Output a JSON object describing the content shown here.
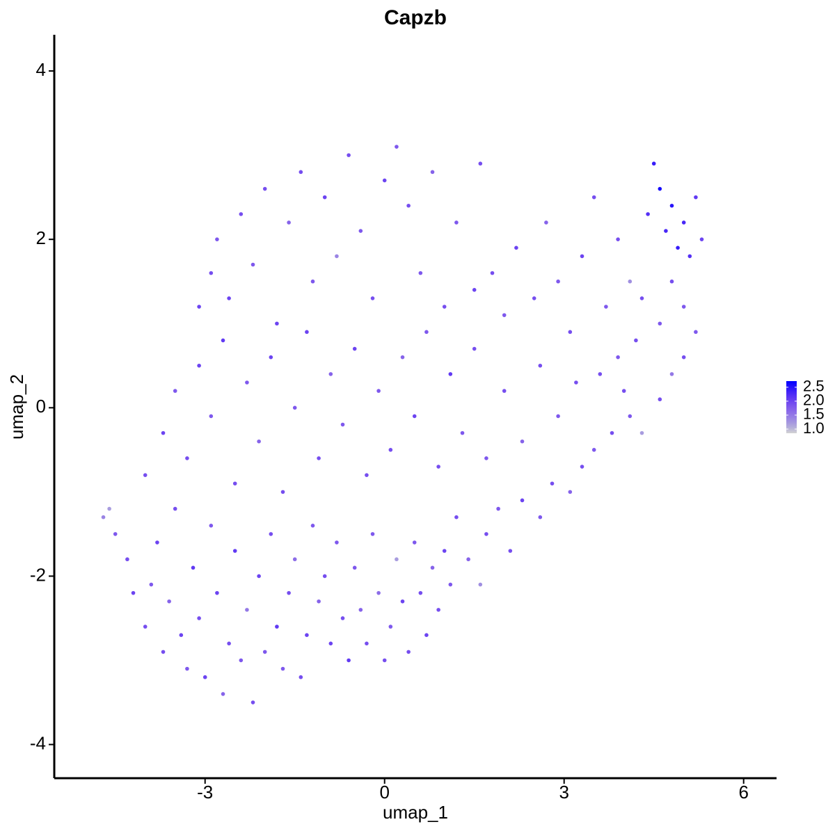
{
  "chart_data": {
    "type": "scatter",
    "title": "Capzb",
    "x_label": "umap_1",
    "y_label": "umap_2",
    "xlim": [
      -5.52,
      6.55
    ],
    "ylim": [
      -4.4,
      4.43
    ],
    "xticks": [
      -3,
      0,
      3,
      6
    ],
    "yticks": [
      -4,
      -2,
      0,
      2,
      4
    ],
    "color_low": "#d3d3d3",
    "color_high": "#0000ff",
    "colorlim": [
      0.85,
      2.72
    ],
    "colorticks": [
      {
        "value": 1.0,
        "label": "1.0"
      },
      {
        "value": 1.5,
        "label": "1.5"
      },
      {
        "value": 2.0,
        "label": "2.0"
      },
      {
        "value": 2.5,
        "label": "2.5"
      }
    ],
    "x": [
      -4.7,
      -4.6,
      -4.5,
      -4.3,
      -4.2,
      -4.0,
      -3.9,
      -3.8,
      -3.7,
      -3.6,
      -3.5,
      -3.4,
      -3.3,
      -3.2,
      -3.1,
      -3.0,
      -2.9,
      -2.8,
      -2.7,
      -2.6,
      -2.5,
      -2.4,
      -2.3,
      -2.2,
      -2.1,
      -2.0,
      -1.9,
      -1.8,
      -1.7,
      -1.6,
      -1.5,
      -1.4,
      -1.3,
      -1.2,
      -1.1,
      -1.0,
      -0.9,
      -0.8,
      -0.7,
      -0.6,
      -0.5,
      -0.4,
      -0.3,
      -0.2,
      -0.1,
      0.0,
      0.1,
      0.2,
      0.3,
      0.4,
      0.5,
      0.6,
      0.7,
      0.8,
      0.9,
      1.0,
      1.1,
      1.2,
      1.4,
      1.6,
      1.7,
      1.9,
      2.1,
      2.3,
      2.6,
      2.8,
      3.1,
      3.3,
      3.5,
      3.8,
      4.1,
      4.3,
      4.6,
      4.8,
      5.0,
      5.2,
      -4.0,
      -3.7,
      -3.5,
      -3.3,
      -3.1,
      -2.9,
      -2.7,
      -2.5,
      -2.3,
      -2.1,
      -1.9,
      -1.7,
      -1.5,
      -1.3,
      -1.1,
      -0.9,
      -0.7,
      -0.5,
      -0.3,
      -0.1,
      0.1,
      0.3,
      0.5,
      0.7,
      0.9,
      1.1,
      1.3,
      1.5,
      1.7,
      2.0,
      2.3,
      2.6,
      2.9,
      3.2,
      -3.1,
      -2.9,
      -2.8,
      -2.6,
      -2.4,
      -2.2,
      -2.0,
      -1.8,
      -1.6,
      -1.4,
      -1.2,
      -1.0,
      -0.8,
      -0.6,
      -0.4,
      -0.2,
      0.0,
      0.2,
      0.4,
      0.6,
      0.8,
      1.0,
      1.2,
      1.6,
      1.5,
      1.8,
      2.0,
      2.2,
      2.5,
      2.7,
      2.9,
      3.1,
      3.3,
      3.5,
      3.7,
      3.9,
      4.1,
      4.2,
      4.4,
      4.5,
      4.6,
      4.7,
      4.8,
      4.9,
      5.0,
      5.1,
      5.2,
      5.3,
      4.3,
      4.6,
      4.8,
      5.0,
      3.6,
      3.9,
      4.0
    ],
    "y": [
      -1.3,
      -1.2,
      -1.5,
      -1.8,
      -2.2,
      -2.6,
      -2.1,
      -1.6,
      -2.9,
      -2.3,
      -1.2,
      -2.7,
      -3.1,
      -1.9,
      -2.5,
      -3.2,
      -1.4,
      -2.2,
      -3.4,
      -2.8,
      -1.7,
      -3.0,
      -2.4,
      -3.5,
      -2.0,
      -2.9,
      -1.5,
      -2.6,
      -3.1,
      -2.2,
      -1.8,
      -3.2,
      -2.7,
      -1.4,
      -2.3,
      -2.0,
      -2.8,
      -1.6,
      -2.5,
      -3.0,
      -1.9,
      -2.4,
      -2.8,
      -1.5,
      -2.2,
      -3.0,
      -2.6,
      -1.8,
      -2.3,
      -2.9,
      -1.6,
      -2.2,
      -2.7,
      -1.9,
      -2.4,
      -1.7,
      -2.1,
      -1.3,
      -1.8,
      -2.1,
      -1.5,
      -1.2,
      -1.7,
      -1.1,
      -1.3,
      -0.9,
      -1.0,
      -0.7,
      -0.5,
      -0.3,
      -0.1,
      -0.3,
      0.1,
      0.4,
      0.6,
      0.9,
      -0.8,
      -0.3,
      0.2,
      -0.6,
      0.5,
      -0.1,
      0.8,
      -0.9,
      0.3,
      -0.4,
      0.6,
      -1.0,
      0.0,
      0.9,
      -0.6,
      0.4,
      -0.2,
      0.7,
      -0.8,
      0.2,
      -0.5,
      0.6,
      -0.1,
      0.9,
      -0.7,
      0.4,
      -0.3,
      0.7,
      -0.6,
      0.2,
      -0.4,
      0.5,
      -0.1,
      0.3,
      1.2,
      1.6,
      2.0,
      1.3,
      2.3,
      1.7,
      2.6,
      1.0,
      2.2,
      2.8,
      1.5,
      2.5,
      1.8,
      3.0,
      2.1,
      1.3,
      2.7,
      3.1,
      2.4,
      1.6,
      2.8,
      1.2,
      2.2,
      2.9,
      1.4,
      1.6,
      1.1,
      1.9,
      1.3,
      2.2,
      1.5,
      0.9,
      1.8,
      2.5,
      1.2,
      2.0,
      1.5,
      0.8,
      2.3,
      2.9,
      2.6,
      2.1,
      2.4,
      1.9,
      2.2,
      1.8,
      2.5,
      2.0,
      1.3,
      1.0,
      1.5,
      1.2,
      0.4,
      0.6,
      0.2
    ],
    "values": [
      1.4,
      1.2,
      1.8,
      1.9,
      2.0,
      1.9,
      1.8,
      2.0,
      1.9,
      1.7,
      1.9,
      2.0,
      1.8,
      2.1,
      1.9,
      2.0,
      1.8,
      2.0,
      1.7,
      1.9,
      2.1,
      1.8,
      1.5,
      1.9,
      2.0,
      1.8,
      1.9,
      2.1,
      1.8,
      1.9,
      1.6,
      1.9,
      2.0,
      1.8,
      1.7,
      1.9,
      2.0,
      1.8,
      1.9,
      2.1,
      1.8,
      1.7,
      1.9,
      1.8,
      1.6,
      1.9,
      1.8,
      1.2,
      2.0,
      1.9,
      1.8,
      1.9,
      2.0,
      1.7,
      1.9,
      2.0,
      1.8,
      1.9,
      1.7,
      1.3,
      1.9,
      1.8,
      1.9,
      2.0,
      1.8,
      1.9,
      1.7,
      1.9,
      1.8,
      1.9,
      1.8,
      1.2,
      1.9,
      1.5,
      1.9,
      1.8,
      1.9,
      2.0,
      1.8,
      1.9,
      2.0,
      1.8,
      2.1,
      1.9,
      1.8,
      1.7,
      2.0,
      1.9,
      1.8,
      2.0,
      1.9,
      1.7,
      1.8,
      2.0,
      1.9,
      1.8,
      1.9,
      1.7,
      2.0,
      1.8,
      1.9,
      2.1,
      1.8,
      1.9,
      1.8,
      1.9,
      1.7,
      1.9,
      1.8,
      1.9,
      2.0,
      1.9,
      1.8,
      2.0,
      1.9,
      1.8,
      1.9,
      2.0,
      1.7,
      1.9,
      1.8,
      2.0,
      1.4,
      1.9,
      1.8,
      1.9,
      2.0,
      1.8,
      1.9,
      1.8,
      1.7,
      1.9,
      1.8,
      1.9,
      2.0,
      1.9,
      1.8,
      2.0,
      1.9,
      1.7,
      1.8,
      1.9,
      2.0,
      1.9,
      1.8,
      1.9,
      1.3,
      1.9,
      2.2,
      2.4,
      2.6,
      2.3,
      2.5,
      2.4,
      2.3,
      2.2,
      2.1,
      2.0,
      1.9,
      1.8,
      1.9,
      1.8,
      1.9,
      1.8,
      1.9
    ]
  }
}
